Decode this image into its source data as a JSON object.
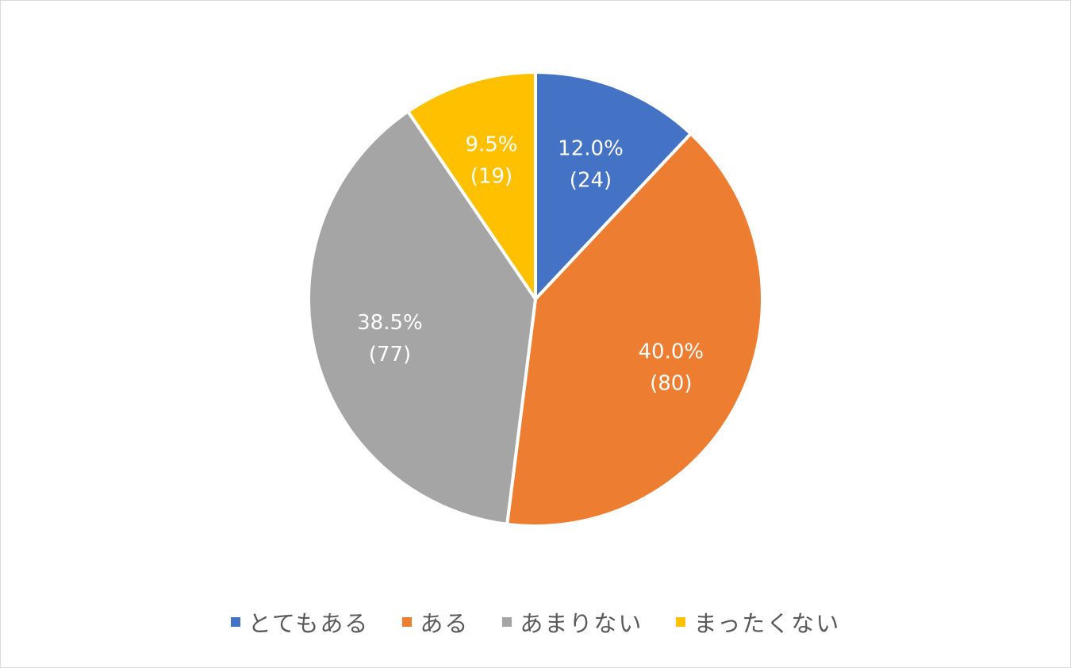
{
  "chart_data": {
    "type": "pie",
    "start": "12 o'clock, clockwise",
    "categories": [
      "とてもある",
      "ある",
      "あまりない",
      "まったくない"
    ],
    "values": [
      24,
      80,
      77,
      19
    ],
    "percentages": [
      "12.0%",
      "40.0%",
      "38.5%",
      "9.5%"
    ],
    "data_labels": [
      {
        "pct": "12.0%",
        "count": "(24)"
      },
      {
        "pct": "40.0%",
        "count": "(80)"
      },
      {
        "pct": "38.5%",
        "count": "(77)"
      },
      {
        "pct": "9.5%",
        "count": "(19)"
      }
    ],
    "colors": [
      "#4472C4",
      "#ED7D31",
      "#A5A5A5",
      "#FFC000"
    ],
    "legend_position": "bottom",
    "title": ""
  },
  "legend": {
    "items": [
      {
        "label": "とてもある",
        "color": "#4472C4"
      },
      {
        "label": "ある",
        "color": "#ED7D31"
      },
      {
        "label": "あまりない",
        "color": "#A5A5A5"
      },
      {
        "label": "まったくない",
        "color": "#FFC000"
      }
    ]
  }
}
